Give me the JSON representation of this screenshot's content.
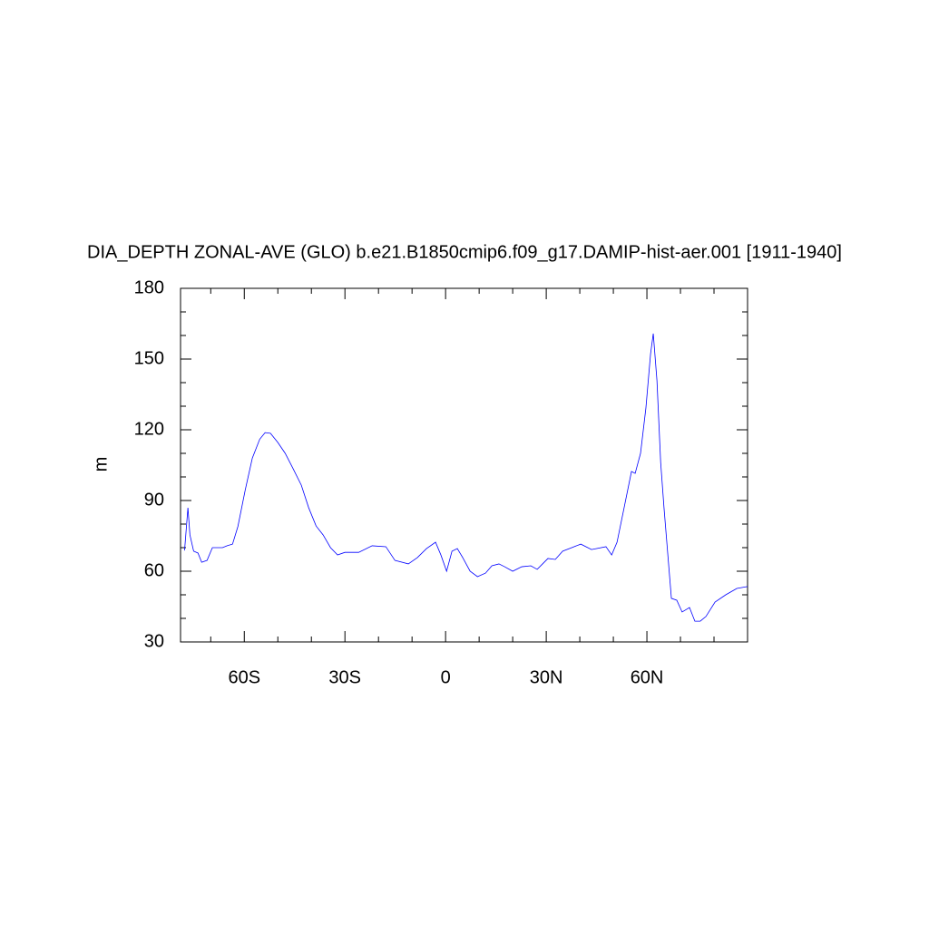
{
  "chart_data": {
    "type": "line",
    "title": "DIA_DEPTH ZONAL-AVE (GLO) b.e21.B1850cmip6.f09_g17.DAMIP-hist-aer.001 [1911-1940]",
    "y_label": "m",
    "xlim": [
      -79,
      90
    ],
    "ylim": [
      30,
      180
    ],
    "xticks": [
      {
        "value": -60,
        "label": "60S"
      },
      {
        "value": -30,
        "label": "30S"
      },
      0,
      {
        "value": 30,
        "label": "30N"
      },
      {
        "value": 60,
        "label": "60N"
      }
    ],
    "yticks": [
      30,
      60,
      90,
      120,
      150,
      180
    ],
    "xminorticks": [
      -70,
      -50,
      -40,
      -20,
      -10,
      10,
      20,
      40,
      50,
      70,
      80,
      90
    ],
    "yminorticks": [
      40,
      50,
      70,
      80,
      100,
      110,
      130,
      140,
      160,
      170
    ],
    "series": [
      {
        "name": "DIA_DEPTH",
        "color": "#0000ff",
        "x": [
          -77.8,
          -76.8,
          -76.2,
          -75.1,
          -73.8,
          -72.7,
          -71.1,
          -69.5,
          -66.5,
          -65.1,
          -63.5,
          -61.9,
          -59.7,
          -57.6,
          -55.4,
          -53.8,
          -52.2,
          -50,
          -47.8,
          -45.7,
          -43,
          -40.8,
          -38.6,
          -36.5,
          -34.3,
          -32.2,
          -30,
          -25.9,
          -21.9,
          -17.8,
          -15.1,
          -11.1,
          -8.4,
          -5.7,
          -3,
          -1.4,
          0.3,
          1.9,
          3.5,
          5.1,
          7.3,
          9.5,
          11.9,
          13.8,
          15.9,
          17.6,
          20,
          22.7,
          25.4,
          27.3,
          28.9,
          30.5,
          32.7,
          34.9,
          37.6,
          40.3,
          43.5,
          47.8,
          49.5,
          51.1,
          53.2,
          55.4,
          56.5,
          58.1,
          59.7,
          61.1,
          61.9,
          63,
          64.1,
          65.1,
          66.2,
          67.3,
          68.9,
          70.5,
          72.7,
          74.3,
          75.9,
          77.6,
          80.3,
          83.5,
          86.8,
          90
        ],
        "values": [
          68.8,
          86.9,
          75.4,
          68.5,
          67.7,
          63.8,
          64.6,
          70,
          70,
          70.8,
          71.5,
          79,
          94.6,
          108,
          116,
          118.8,
          118.5,
          114.6,
          110,
          104.2,
          96.5,
          86.9,
          79.2,
          75.4,
          70,
          66.9,
          68,
          68,
          70.8,
          70.4,
          64.6,
          63.1,
          65.8,
          69.6,
          72.3,
          66.9,
          60,
          68.5,
          69.6,
          65.8,
          60,
          57.7,
          59.2,
          62.3,
          63.1,
          61.9,
          60,
          61.9,
          62.3,
          60.8,
          63.1,
          65.4,
          65,
          68.5,
          70,
          71.5,
          69.2,
          70.4,
          66.9,
          72.3,
          86.9,
          102.3,
          101.5,
          110,
          129.2,
          152.3,
          160.8,
          140.8,
          106.2,
          86.9,
          67.7,
          48.5,
          47.7,
          42.7,
          44.6,
          38.8,
          38.8,
          40.8,
          46.9,
          50,
          52.7,
          53.5
        ]
      }
    ]
  }
}
